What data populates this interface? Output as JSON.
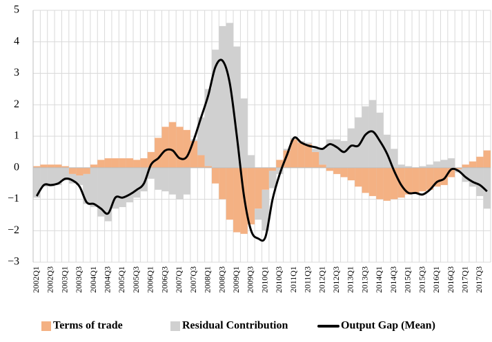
{
  "chart_data": {
    "type": "bar",
    "stacked": true,
    "grid": true,
    "categories": [
      "2002Q1",
      null,
      "2002Q3",
      null,
      "2003Q1",
      null,
      "2003Q3",
      null,
      "2004Q1",
      null,
      "2004Q3",
      null,
      "2005Q1",
      null,
      "2005Q3",
      null,
      "2006Q1",
      null,
      "2006Q3",
      null,
      "2007Q1",
      null,
      "2007Q3",
      null,
      "2008Q1",
      null,
      "2008Q3",
      null,
      "2009Q1",
      null,
      "2009Q3",
      null,
      "2010Q1",
      null,
      "2010Q3",
      null,
      "2011Q1",
      null,
      "2011Q3",
      null,
      "2012Q1",
      null,
      "2012Q3",
      null,
      "2013Q1",
      null,
      "2013Q3",
      null,
      "2014Q1",
      null,
      "2014Q3",
      null,
      "2015Q1",
      null,
      "2015Q3",
      null,
      "2016Q1",
      null,
      "2016Q3",
      null,
      "2017Q1",
      null,
      "2017Q3",
      null
    ],
    "ylim": [
      -3,
      5
    ],
    "yticks": [
      {
        "value": -3,
        "label": "−3"
      },
      {
        "value": -2,
        "label": "−2"
      },
      {
        "value": -1,
        "label": "−1"
      },
      0,
      1,
      2,
      3,
      4,
      5
    ],
    "series": [
      {
        "name": "Terms of trade",
        "type": "bar",
        "color": "#f4b183",
        "values": [
          0.05,
          0.1,
          0.1,
          0.1,
          0.05,
          -0.2,
          -0.25,
          -0.2,
          0.1,
          0.25,
          0.3,
          0.3,
          0.3,
          0.3,
          0.25,
          0.3,
          0.5,
          0.95,
          1.3,
          1.45,
          1.3,
          1.2,
          0.85,
          0.4,
          0.05,
          -0.5,
          -1.0,
          -1.65,
          -2.05,
          -2.1,
          -1.8,
          -1.3,
          -0.7,
          -0.1,
          0.25,
          0.55,
          0.9,
          0.8,
          0.75,
          0.5,
          0.1,
          -0.1,
          -0.2,
          -0.3,
          -0.4,
          -0.6,
          -0.8,
          -0.9,
          -1.0,
          -1.05,
          -1.0,
          -0.95,
          -0.85,
          -0.8,
          -0.75,
          -0.7,
          -0.6,
          -0.55,
          -0.3,
          -0.05,
          0.1,
          0.2,
          0.35,
          0.55
        ]
      },
      {
        "name": "Residual Contribution",
        "type": "bar",
        "color": "#d0d0d0",
        "values": [
          -0.95,
          -0.6,
          -0.6,
          -0.55,
          -0.4,
          -0.3,
          -0.3,
          -0.95,
          -1.25,
          -1.55,
          -1.7,
          -1.3,
          -1.25,
          -1.1,
          -0.95,
          -0.75,
          -0.35,
          -0.7,
          -0.75,
          -0.85,
          -1.0,
          -0.85,
          0.05,
          1.2,
          2.45,
          3.75,
          4.5,
          4.6,
          3.85,
          2.2,
          0.4,
          -0.35,
          -1.3,
          -0.55,
          -0.2,
          0.05,
          0.05,
          0.05,
          0.05,
          0.1,
          0.5,
          0.9,
          0.9,
          0.85,
          1.25,
          1.6,
          1.95,
          2.15,
          1.75,
          1.05,
          0.6,
          0.1,
          0.05,
          0.0,
          0.05,
          0.1,
          0.2,
          0.25,
          0.3,
          -0.1,
          -0.45,
          -0.6,
          -0.9,
          -1.3
        ]
      },
      {
        "name": "Output Gap (Mean)",
        "type": "line",
        "color": "#000000",
        "values": [
          -0.9,
          -0.55,
          -0.55,
          -0.5,
          -0.35,
          -0.4,
          -0.6,
          -1.1,
          -1.15,
          -1.3,
          -1.45,
          -0.95,
          -0.95,
          -0.85,
          -0.7,
          -0.5,
          0.1,
          0.3,
          0.55,
          0.55,
          0.3,
          0.35,
          0.9,
          1.6,
          2.3,
          3.2,
          3.4,
          2.7,
          1.0,
          -0.9,
          -2.0,
          -2.25,
          -2.2,
          -1.0,
          -0.2,
          0.4,
          0.95,
          0.8,
          0.7,
          0.65,
          0.6,
          0.75,
          0.65,
          0.5,
          0.7,
          0.7,
          1.05,
          1.15,
          0.85,
          0.45,
          -0.1,
          -0.55,
          -0.8,
          -0.8,
          -0.85,
          -0.7,
          -0.45,
          -0.35,
          -0.05,
          -0.1,
          -0.3,
          -0.45,
          -0.55,
          -0.75
        ]
      }
    ]
  }
}
